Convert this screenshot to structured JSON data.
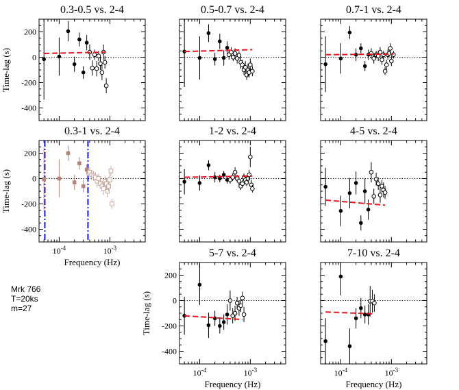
{
  "figure": {
    "info_lines": [
      "Mrk 766",
      "T=20ks",
      "m=27"
    ]
  },
  "chart_data": [
    {
      "type": "scatter",
      "title": "0.3-0.5 vs. 2-4",
      "ylabel": "Time-lag (s)",
      "xlabel": "",
      "xscale": "log",
      "xlim": [
        4e-05,
        0.005
      ],
      "ylim": [
        -500,
        300
      ],
      "yticks": [
        200,
        0,
        -200,
        -400
      ],
      "xticks": [],
      "zero_line": true,
      "fit": {
        "x": [
          5e-05,
          0.0008
        ],
        "y": [
          30,
          40
        ],
        "color": "#e8141e"
      },
      "series": [
        {
          "name": "filled",
          "marker": "filled",
          "x": [
            5e-05,
            0.0001,
            0.00015,
            0.0002,
            0.00025,
            0.0003,
            0.00035
          ],
          "y": [
            -15,
            5,
            205,
            -55,
            140,
            -120,
            115
          ],
          "err": [
            320,
            150,
            80,
            60,
            55,
            50,
            60
          ]
        },
        {
          "name": "open",
          "marker": "open",
          "x": [
            0.0004,
            0.00045,
            0.0005,
            0.00055,
            0.0006,
            0.00065,
            0.0007,
            0.00075,
            0.0008,
            0.00085
          ],
          "y": [
            40,
            -85,
            20,
            -90,
            10,
            -50,
            -120,
            40,
            -40,
            -225
          ],
          "err": [
            60,
            60,
            40,
            60,
            40,
            50,
            60,
            60,
            50,
            60
          ]
        }
      ],
      "bands": []
    },
    {
      "type": "scatter",
      "title": "0.5-0.7 vs. 2-4",
      "ylabel": "",
      "xlabel": "",
      "xscale": "log",
      "xlim": [
        4e-05,
        0.005
      ],
      "ylim": [
        -500,
        300
      ],
      "yticks": [],
      "xticks": [],
      "zero_line": true,
      "fit": {
        "x": [
          5e-05,
          0.0011
        ],
        "y": [
          45,
          60
        ],
        "color": "#e8141e"
      },
      "series": [
        {
          "name": "filled",
          "marker": "filled",
          "x": [
            5e-05,
            0.0001,
            0.00015,
            0.0002,
            0.00025,
            0.0003,
            0.00035
          ],
          "y": [
            45,
            -5,
            190,
            -15,
            125,
            -5,
            75
          ],
          "err": [
            280,
            170,
            70,
            50,
            60,
            60,
            50
          ]
        },
        {
          "name": "open",
          "marker": "open",
          "x": [
            0.00038,
            0.00042,
            0.00046,
            0.0005,
            0.00055,
            0.0006,
            0.00065,
            0.0007,
            0.00075,
            0.0008,
            0.00085,
            0.0009,
            0.00095,
            0.001,
            0.0011
          ],
          "y": [
            20,
            40,
            0,
            30,
            -10,
            15,
            -40,
            -60,
            -100,
            -80,
            -140,
            -100,
            -120,
            -60,
            -110
          ],
          "err": [
            40,
            40,
            30,
            40,
            40,
            30,
            50,
            40,
            40,
            50,
            40,
            50,
            40,
            50,
            40
          ]
        }
      ],
      "bands": []
    },
    {
      "type": "scatter",
      "title": "0.7-1 vs. 2-4",
      "ylabel": "",
      "xlabel": "",
      "xscale": "log",
      "xlim": [
        4e-05,
        0.005
      ],
      "ylim": [
        -500,
        300
      ],
      "yticks": [],
      "xticks": [],
      "zero_line": true,
      "fit": {
        "x": [
          5e-05,
          0.0011
        ],
        "y": [
          20,
          25
        ],
        "color": "#e8141e"
      },
      "series": [
        {
          "name": "filled",
          "marker": "filled",
          "x": [
            5e-05,
            0.0001,
            0.00015,
            0.0002,
            0.00025,
            0.0003,
            0.00035
          ],
          "y": [
            -55,
            -10,
            195,
            20,
            70,
            -70,
            20
          ],
          "err": [
            220,
            120,
            50,
            50,
            40,
            40,
            40
          ]
        },
        {
          "name": "open",
          "marker": "open",
          "x": [
            0.0004,
            0.00045,
            0.0005,
            0.00055,
            0.0006,
            0.00065,
            0.0007,
            0.00075,
            0.0008,
            0.00085,
            0.0009,
            0.00095,
            0.001,
            0.0011
          ],
          "y": [
            30,
            -10,
            20,
            10,
            40,
            -20,
            20,
            -110,
            -60,
            20,
            30,
            70,
            -30,
            20
          ],
          "err": [
            40,
            40,
            30,
            40,
            40,
            40,
            30,
            30,
            40,
            40,
            30,
            40,
            40,
            30
          ]
        }
      ],
      "bands": []
    },
    {
      "type": "scatter",
      "title": "0.3-1 vs. 2-4",
      "ylabel": "Time-lag (s)",
      "xlabel": "Frequency (Hz)",
      "xscale": "log",
      "xlim": [
        4e-05,
        0.005
      ],
      "ylim": [
        -500,
        300
      ],
      "yticks": [
        200,
        0,
        -200,
        -400
      ],
      "xticks": [
        {
          "v": 0.0001,
          "base": "10",
          "exp": "-4"
        },
        {
          "v": 0.001,
          "base": "10",
          "exp": "-3"
        }
      ],
      "zero_line": true,
      "fit": null,
      "series": [
        {
          "name": "filled-faded",
          "marker": "filled-square",
          "color": "#b38478",
          "x": [
            5e-05,
            0.0001,
            0.00015,
            0.0002,
            0.00025,
            0.0003,
            0.00035
          ],
          "y": [
            -5,
            0,
            200,
            -30,
            120,
            -60,
            70
          ],
          "err": [
            250,
            150,
            60,
            60,
            50,
            50,
            40
          ]
        },
        {
          "name": "open-faded",
          "marker": "open-square",
          "color": "#c8a59c",
          "x": [
            0.0004,
            0.00044,
            0.00048,
            0.00052,
            0.00056,
            0.0006,
            0.00065,
            0.0007,
            0.00075,
            0.0008,
            0.00085,
            0.0009,
            0.00095,
            0.001,
            0.00105,
            0.0011
          ],
          "y": [
            50,
            30,
            20,
            10,
            -20,
            0,
            -40,
            -60,
            -80,
            -20,
            -40,
            -100,
            -60,
            -10,
            60,
            -200
          ],
          "err": [
            40,
            40,
            40,
            40,
            50,
            40,
            40,
            40,
            50,
            40,
            40,
            50,
            40,
            50,
            40,
            40
          ]
        }
      ],
      "bands": [
        {
          "x": 5.2e-05,
          "color": "#1a1ae6"
        },
        {
          "x": 0.00037,
          "color": "#1a1ae6"
        }
      ]
    },
    {
      "type": "scatter",
      "title": "1-2 vs. 2-4",
      "ylabel": "",
      "xlabel": "",
      "xscale": "log",
      "xlim": [
        4e-05,
        0.005
      ],
      "ylim": [
        -500,
        300
      ],
      "yticks": [],
      "xticks": [],
      "zero_line": true,
      "fit": {
        "x": [
          5e-05,
          0.0011
        ],
        "y": [
          10,
          20
        ],
        "color": "#e8141e"
      },
      "series": [
        {
          "name": "filled",
          "marker": "filled",
          "x": [
            5e-05,
            0.0001,
            0.00015,
            0.0002,
            0.00025,
            0.0003,
            0.00035
          ],
          "y": [
            -25,
            -35,
            105,
            10,
            0,
            30,
            -10
          ],
          "err": [
            100,
            60,
            40,
            40,
            30,
            30,
            30
          ]
        },
        {
          "name": "open",
          "marker": "open",
          "x": [
            0.0004,
            0.00045,
            0.0005,
            0.00055,
            0.0006,
            0.00065,
            0.0007,
            0.00075,
            0.0008,
            0.00085,
            0.0009,
            0.00095,
            0.001,
            0.00105,
            0.0011
          ],
          "y": [
            -10,
            10,
            50,
            0,
            -20,
            -60,
            -40,
            10,
            -10,
            -30,
            0,
            30,
            170,
            -50,
            -80
          ],
          "err": [
            30,
            30,
            40,
            30,
            30,
            30,
            30,
            30,
            30,
            30,
            30,
            40,
            80,
            40,
            30
          ]
        }
      ],
      "bands": []
    },
    {
      "type": "scatter",
      "title": "4-5 vs. 2-4",
      "ylabel": "",
      "xlabel": "",
      "xscale": "log",
      "xlim": [
        4e-05,
        0.005
      ],
      "ylim": [
        -500,
        300
      ],
      "yticks": [],
      "xticks": [],
      "zero_line": true,
      "fit": {
        "x": [
          5e-05,
          0.00075
        ],
        "y": [
          -170,
          -210
        ],
        "color": "#e8141e"
      },
      "series": [
        {
          "name": "filled",
          "marker": "filled",
          "x": [
            5e-05,
            0.0001,
            0.00015,
            0.0002,
            0.00025,
            0.0003,
            0.00035
          ],
          "y": [
            -65,
            -255,
            -115,
            -35,
            -350,
            -100,
            -245
          ],
          "err": [
            150,
            120,
            120,
            90,
            60,
            100,
            80
          ]
        },
        {
          "name": "open",
          "marker": "open",
          "x": [
            0.0004,
            0.00045,
            0.0005,
            0.00055,
            0.0006,
            0.00065,
            0.0007,
            0.00075
          ],
          "y": [
            50,
            -140,
            -5,
            -40,
            -130,
            -60,
            -90,
            -110
          ],
          "err": [
            80,
            60,
            50,
            50,
            60,
            50,
            60,
            50
          ]
        }
      ],
      "bands": []
    },
    {
      "type": "scatter",
      "title": "5-7 vs. 2-4",
      "ylabel": "Time-lag (s)",
      "xlabel": "Frequency (Hz)",
      "xscale": "log",
      "xlim": [
        4e-05,
        0.005
      ],
      "ylim": [
        -500,
        300
      ],
      "yticks": [
        200,
        0,
        -200,
        -400
      ],
      "xticks": [
        {
          "v": 0.0001,
          "base": "10",
          "exp": "-4"
        },
        {
          "v": 0.001,
          "base": "10",
          "exp": "-3"
        }
      ],
      "zero_line": true,
      "fit": {
        "x": [
          5e-05,
          0.0007
        ],
        "y": [
          -120,
          -150
        ],
        "color": "#e8141e"
      },
      "series": [
        {
          "name": "filled",
          "marker": "filled",
          "x": [
            5e-05,
            0.0001,
            0.00015,
            0.0002,
            0.00025,
            0.0003,
            0.00035
          ],
          "y": [
            -120,
            125,
            -195,
            -140,
            -200,
            -170,
            -110
          ],
          "err": [
            150,
            160,
            100,
            60,
            60,
            60,
            80
          ]
        },
        {
          "name": "open",
          "marker": "open",
          "x": [
            0.0004,
            0.00045,
            0.0005,
            0.00055,
            0.0006,
            0.00065,
            0.0007,
            0.00075
          ],
          "y": [
            0,
            -120,
            -100,
            -20,
            -60,
            -40,
            20,
            -110
          ],
          "err": [
            80,
            60,
            60,
            50,
            60,
            50,
            50,
            60
          ]
        }
      ],
      "bands": []
    },
    {
      "type": "scatter",
      "title": "7-10 vs. 2-4",
      "ylabel": "",
      "xlabel": "Frequency (Hz)",
      "xscale": "log",
      "xlim": [
        4e-05,
        0.005
      ],
      "ylim": [
        -500,
        300
      ],
      "yticks": [],
      "xticks": [
        {
          "v": 0.0001,
          "base": "10",
          "exp": "-4"
        },
        {
          "v": 0.001,
          "base": "10",
          "exp": "-3"
        }
      ],
      "zero_line": true,
      "fit": {
        "x": [
          5e-05,
          0.00045
        ],
        "y": [
          -90,
          -105
        ],
        "color": "#e8141e"
      },
      "series": [
        {
          "name": "filled",
          "marker": "filled",
          "x": [
            5e-05,
            0.0001,
            0.00015,
            0.0002,
            0.00025,
            0.0003,
            0.00035
          ],
          "y": [
            -320,
            190,
            -360,
            -140,
            -60,
            -110,
            -110
          ],
          "err": [
            180,
            150,
            140,
            80,
            80,
            70,
            80
          ]
        },
        {
          "name": "open",
          "marker": "open",
          "x": [
            0.00038,
            0.00042,
            0.00046
          ],
          "y": [
            -5,
            -5,
            -20
          ],
          "err": [
            120,
            90,
            70
          ]
        }
      ],
      "bands": []
    }
  ]
}
